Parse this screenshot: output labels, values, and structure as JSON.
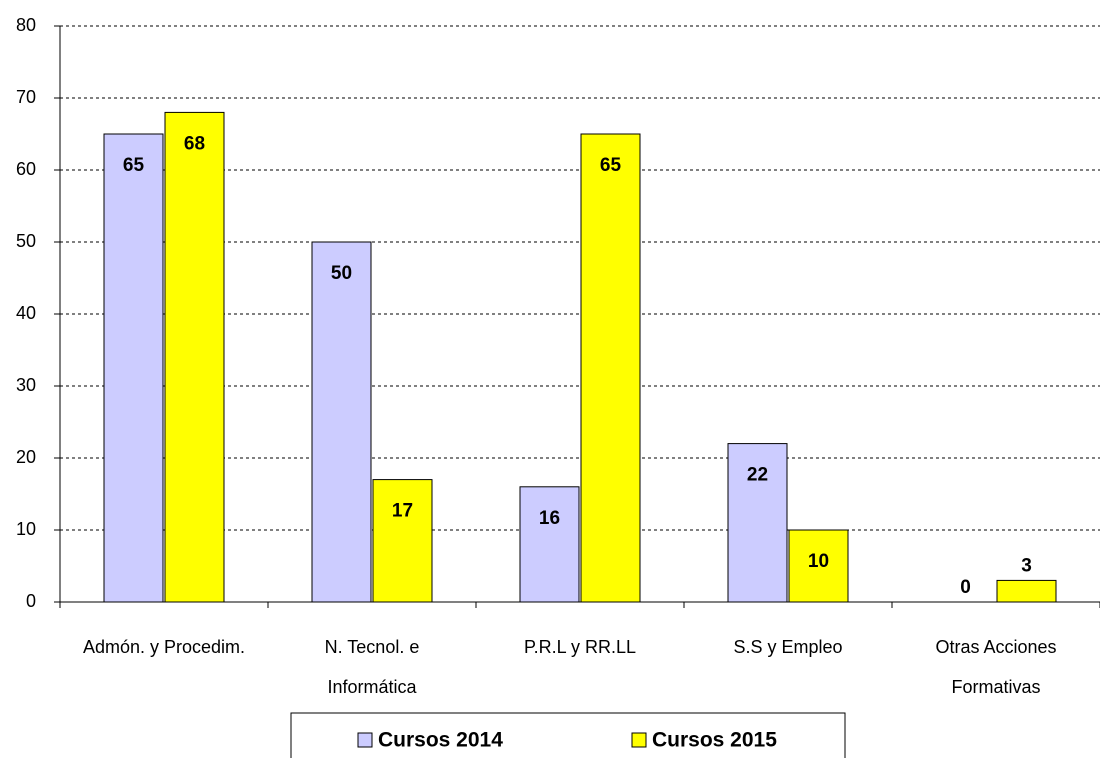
{
  "chart_data": {
    "type": "bar",
    "categories": [
      [
        "Admón. y Procedim."
      ],
      [
        "N. Tecnol. e",
        "Informática"
      ],
      [
        "P.R.L y RR.LL"
      ],
      [
        "S.S y Empleo"
      ],
      [
        "Otras Acciones",
        "Formativas"
      ]
    ],
    "series": [
      {
        "name": "Cursos 2014",
        "color": "#ccccff",
        "values": [
          65,
          50,
          16,
          22,
          0
        ]
      },
      {
        "name": "Cursos 2015",
        "color": "#ffff00",
        "values": [
          68,
          17,
          65,
          10,
          3
        ]
      }
    ],
    "ylim": [
      0,
      80
    ],
    "yticks": [
      0,
      10,
      20,
      30,
      40,
      50,
      60,
      70,
      80
    ],
    "grid": true,
    "legend": "bottom"
  }
}
